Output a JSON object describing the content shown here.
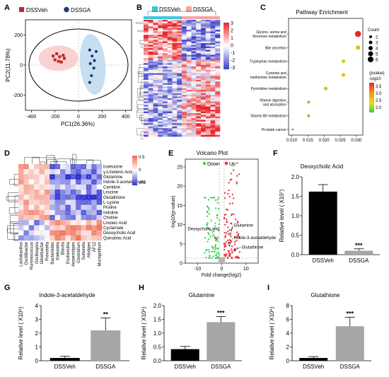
{
  "panels": {
    "A": {
      "label": "A",
      "legend": [
        {
          "name": "DSSVeh",
          "color": "#c0272d"
        },
        {
          "name": "DSSGA",
          "color": "#1f3b73"
        }
      ],
      "xlabel": "PC1(26.36%)",
      "ylabel": "PC2(11.78%)",
      "xticks": [
        "-400",
        "-200",
        "0",
        "200",
        "400"
      ],
      "yticks": [
        "-200",
        "0",
        "200"
      ],
      "chart_data": {
        "type": "scatter",
        "title": "",
        "xlabel": "PC1(26.36%)",
        "ylabel": "PC2(11.78%)",
        "xlim": [
          -450,
          450
        ],
        "ylim": [
          -300,
          300
        ],
        "series": [
          {
            "name": "DSSVeh",
            "color": "#c0272d",
            "x": [
              -215,
              -185,
              -160,
              -130,
              -200,
              -170,
              -145,
              -120
            ],
            "y": [
              60,
              75,
              55,
              65,
              35,
              25,
              20,
              45
            ]
          },
          {
            "name": "DSSGA",
            "color": "#1f3b73",
            "x": [
              95,
              150,
              115,
              135,
              100,
              130,
              110,
              95
            ],
            "y": [
              100,
              90,
              60,
              30,
              10,
              -20,
              -70,
              -115
            ]
          }
        ]
      }
    },
    "B": {
      "label": "B",
      "legend": [
        {
          "name": "DSSVeh",
          "color": "#3cc8d8"
        },
        {
          "name": "DSSGA",
          "color": "#f5a3a3"
        }
      ],
      "colorbar_ticks": [
        "3",
        "2",
        "1",
        "0",
        "-1",
        "-2",
        "-3"
      ],
      "colors": {
        "high": "#e8262b",
        "mid": "#ffffff",
        "low": "#3a3ec8"
      }
    },
    "C": {
      "label": "C",
      "title": "Pathway Enrichment",
      "count_title": "Count",
      "count_legend": [
        "2",
        "3",
        "4",
        "5",
        "6"
      ],
      "pvalue_title": [
        "(pvalue)",
        "-log10"
      ],
      "pvalue_ticks": [
        "3.5",
        "3.0",
        "2.5",
        "2.0"
      ],
      "chart_data": {
        "type": "scatter",
        "title": "Pathway Enrichment",
        "xlim": [
          0.009,
          0.032
        ],
        "xticks": [
          0.01,
          0.015,
          0.02,
          0.025,
          0.03
        ],
        "x_tick_labels": [
          "0.010",
          "0.015",
          "0.020",
          "0.025",
          "0.030"
        ],
        "pathways": [
          {
            "name": "Glycine, serine and threonine metabolism",
            "lines": [
              "Glycine, serine and",
              "threonine metabolism"
            ],
            "x": 0.0305,
            "count": 6,
            "neglog10p": 3.8
          },
          {
            "name": "Bile secretion",
            "lines": [
              "Bile secretion"
            ],
            "x": 0.0305,
            "count": 4,
            "neglog10p": 2.8
          },
          {
            "name": "Tryptophan metabolism",
            "lines": [
              "Tryptophan metabolism"
            ],
            "x": 0.026,
            "count": 3,
            "neglog10p": 2.4
          },
          {
            "name": "Cysteine and methionine metabolism",
            "lines": [
              "Cysteine and",
              "methionine metabolism"
            ],
            "x": 0.026,
            "count": 3,
            "neglog10p": 2.8
          },
          {
            "name": "Pyrimidine metabolism",
            "lines": [
              "Pyrimidine metabolism"
            ],
            "x": 0.0205,
            "count": 3,
            "neglog10p": 2.3
          },
          {
            "name": "Vitamin digestion and absorption",
            "lines": [
              "Vitamin digestion",
              "and absorption"
            ],
            "x": 0.0152,
            "count": 2,
            "neglog10p": 2.1
          },
          {
            "name": "Vitamin B6 metabolism",
            "lines": [
              "Vitamin B6 metabolism"
            ],
            "x": 0.0152,
            "count": 2,
            "neglog10p": 2.1
          },
          {
            "name": "Prostate cancer",
            "lines": [
              "Prostate cancer"
            ],
            "x": 0.0103,
            "count": 1,
            "neglog10p": 2.0
          }
        ]
      }
    },
    "D": {
      "label": "D",
      "colorbar_ticks": [
        "0.5",
        "0",
        "-0.5"
      ],
      "rows": [
        "Isoleucine",
        "γ-Linolenic Acid",
        "Glutamine",
        "Indole-3-acetaldehyde",
        "Carnitine",
        "Leucine",
        "Glutathione",
        "L-Lysine",
        "Proline",
        "Indoline",
        "Choline",
        "Linoleic Acid",
        "Cyclamate",
        "Deoxycholic Acid",
        "Quinolinic Acid"
      ],
      "cols": [
        "Lactobacillus",
        "Oscillibacter",
        "Ruminococcus",
        "Oscillospira",
        "Odoribacter",
        "Prevotella",
        "Bacteroides",
        "Klebsiella",
        "Blautia",
        "Escherichia",
        "Anaerostipes",
        "Clostridium",
        "Sutterella",
        "Alistipes",
        "AF12",
        "Mucispirillum"
      ]
    },
    "E": {
      "label": "E",
      "title": "Volcano Plot",
      "legend": [
        {
          "name": "Down",
          "color": "#2ecc40"
        },
        {
          "name": "Up",
          "color": "#e8262b"
        }
      ],
      "xlabel": "Fold change(log2)",
      "ylabel": "-log10(p-value)",
      "xticks": [
        "-10",
        "0",
        "10"
      ],
      "yticks": [
        "0",
        "5",
        "10",
        "15",
        "20",
        "25"
      ],
      "annotations": [
        "Deoxycholic acid",
        "Glutamine",
        "Indole-3-acetaldehyde",
        "Glutathione"
      ],
      "chart_data": {
        "type": "scatter",
        "title": "Volcano Plot",
        "xlabel": "Fold change(log2)",
        "ylabel": "-log10(p-value)",
        "xlim": [
          -15,
          15
        ],
        "ylim": [
          0,
          27
        ],
        "series": [
          {
            "name": "Down",
            "color": "#2ecc40",
            "n": 90
          },
          {
            "name": "Up",
            "color": "#e8262b",
            "n": 110
          }
        ],
        "labeled_points": [
          {
            "label": "Deoxycholic acid",
            "x": -2.5,
            "y": 6.5
          },
          {
            "label": "Glutamine",
            "x": 3.5,
            "y": 7.5
          },
          {
            "label": "Indole-3-acetaldehyde",
            "x": 3.0,
            "y": 5.0
          },
          {
            "label": "Glutathione",
            "x": 5.5,
            "y": 3.5
          }
        ]
      }
    },
    "F": {
      "label": "F",
      "title": "Deoxycholic Acid",
      "ylabel": "Relative level ( X10⁷)",
      "yticks": [
        "0.0",
        "0.5",
        "1.0",
        "1.5",
        "2.0"
      ],
      "significance": "***",
      "chart_data": {
        "type": "bar",
        "categories": [
          "DSSVeh",
          "DSSGA"
        ],
        "values": [
          1.62,
          0.1
        ],
        "errors": [
          0.18,
          0.05
        ],
        "ylim": [
          0,
          2.0
        ],
        "colors": [
          "#000000",
          "#a6a6a6"
        ]
      }
    },
    "G": {
      "label": "G",
      "title": "Indole-3-acetaldehyde",
      "ylabel": "Relative level ( X10⁶)",
      "yticks": [
        "0",
        "1",
        "2",
        "3",
        "4"
      ],
      "significance": "**",
      "chart_data": {
        "type": "bar",
        "categories": [
          "DSSVeh",
          "DSSGA"
        ],
        "values": [
          0.2,
          2.2
        ],
        "errors": [
          0.12,
          0.9
        ],
        "ylim": [
          0,
          4
        ],
        "colors": [
          "#000000",
          "#a6a6a6"
        ]
      }
    },
    "H": {
      "label": "H",
      "title": "Glutamine",
      "ylabel": "Relative level ( X10⁶)",
      "yticks": [
        "0.0",
        "0.5",
        "1.0",
        "1.5",
        "2.0"
      ],
      "significance": "***",
      "chart_data": {
        "type": "bar",
        "categories": [
          "DSSVeh",
          "DSSGA"
        ],
        "values": [
          0.42,
          1.4
        ],
        "errors": [
          0.1,
          0.2
        ],
        "ylim": [
          0,
          2.0
        ],
        "colors": [
          "#000000",
          "#a6a6a6"
        ]
      }
    },
    "I": {
      "label": "I",
      "title": "Glutathione",
      "ylabel": "Relative level ( X10⁶)",
      "yticks": [
        "0",
        "2",
        "4",
        "6",
        "8"
      ],
      "significance": "***",
      "chart_data": {
        "type": "bar",
        "categories": [
          "DSSVeh",
          "DSSGA"
        ],
        "values": [
          0.4,
          5.0
        ],
        "errors": [
          0.2,
          1.3
        ],
        "ylim": [
          0,
          8
        ],
        "colors": [
          "#000000",
          "#a6a6a6"
        ]
      }
    }
  }
}
